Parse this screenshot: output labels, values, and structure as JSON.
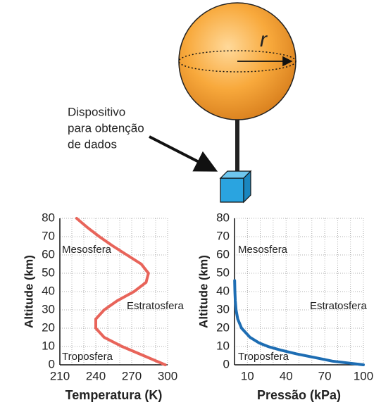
{
  "diagram": {
    "radius_label": "r",
    "device_label": [
      "Dispositivo",
      "para obtenção",
      "de dados"
    ]
  },
  "chart_data": [
    {
      "type": "line",
      "xlabel": "Temperatura (K)",
      "ylabel": "Altitude (km)",
      "xlim": [
        210,
        300
      ],
      "ylim": [
        0,
        80
      ],
      "xticks": [
        210,
        240,
        270,
        300
      ],
      "yticks": [
        0,
        10,
        20,
        30,
        40,
        50,
        60,
        70,
        80
      ],
      "xgrid": [
        210,
        220,
        230,
        240,
        250,
        260,
        270,
        280,
        290,
        300
      ],
      "grid": true,
      "annotations": [
        "Mesosfera",
        "Estratosfera",
        "Troposfera"
      ],
      "series": [
        {
          "color": "#e8645a",
          "x": [
            298,
            280,
            262,
            247,
            240,
            240,
            247,
            258,
            272,
            282,
            284,
            278,
            266,
            254,
            243,
            233,
            224
          ],
          "values": [
            0,
            5,
            10,
            15,
            20,
            25,
            30,
            35,
            40,
            45,
            50,
            55,
            60,
            65,
            70,
            75,
            80
          ]
        }
      ]
    },
    {
      "type": "line",
      "xlabel": "Pressão (kPa)",
      "ylabel": "Altitude (km)",
      "xlim": [
        0,
        100
      ],
      "ylim": [
        0,
        80
      ],
      "xticks": [
        10,
        40,
        70,
        100
      ],
      "yticks": [
        0,
        10,
        20,
        30,
        40,
        50,
        60,
        70,
        80
      ],
      "xgrid": [
        0,
        10,
        20,
        30,
        40,
        50,
        60,
        70,
        80,
        90,
        100
      ],
      "grid": true,
      "annotations": [
        "Mesosfera",
        "Estratosfera",
        "Troposfera"
      ],
      "series": [
        {
          "color": "#1d6db3",
          "x": [
            100,
            76,
            62,
            48,
            36,
            26,
            19,
            12,
            5.5,
            2.5,
            1.2,
            0.6,
            0.3,
            0.1
          ],
          "values": [
            0,
            2,
            4,
            6,
            8,
            10,
            12,
            15,
            20,
            25,
            30,
            35,
            40,
            46
          ]
        }
      ]
    }
  ]
}
